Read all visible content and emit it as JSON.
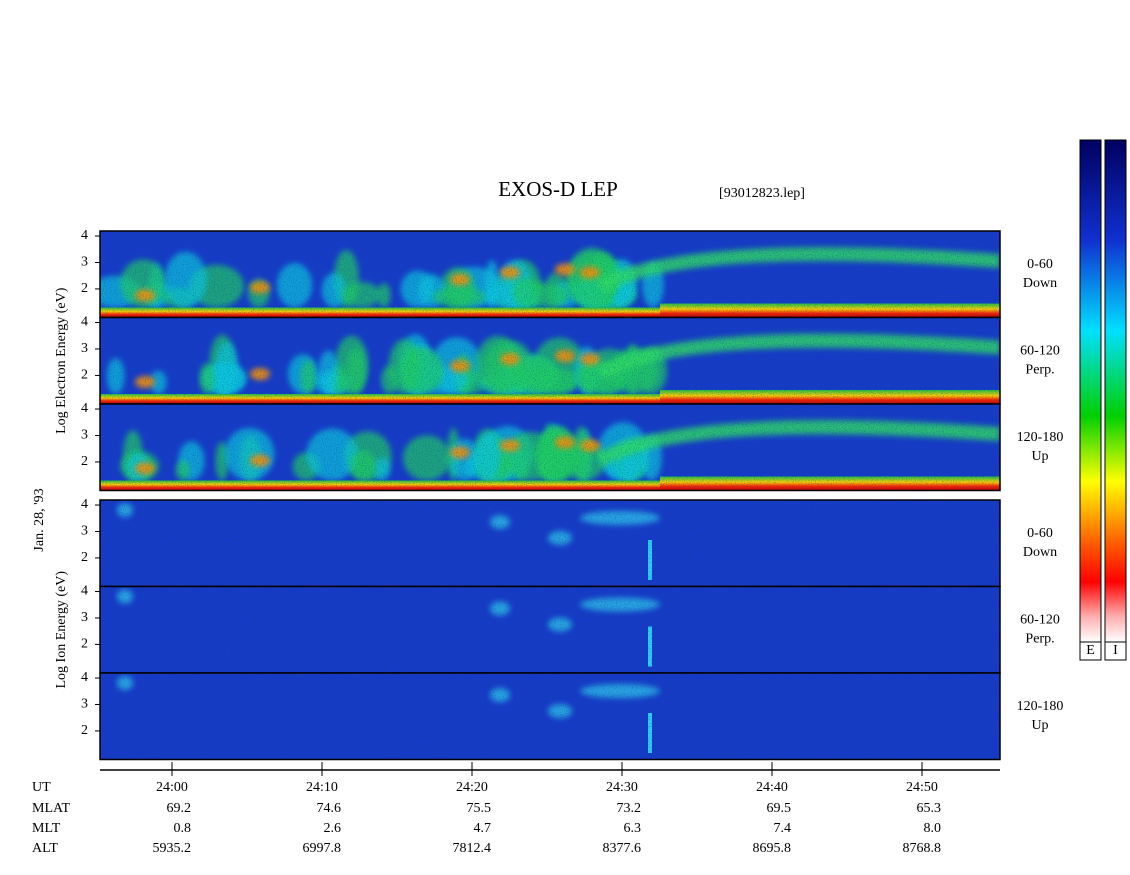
{
  "chart_data": {
    "type": "spectrogram",
    "title": "EXOS-D LEP",
    "subtitle": "[93012823.lep]",
    "date_label": "Jan. 28, '93",
    "groups": [
      {
        "species": "electron",
        "ylabel": "Log Electron Energy (eV)",
        "panels": [
          {
            "pitch_angle": "0-60",
            "direction": "Down"
          },
          {
            "pitch_angle": "60-120",
            "direction": "Perp."
          },
          {
            "pitch_angle": "120-180",
            "direction": "Up"
          }
        ]
      },
      {
        "species": "ion",
        "ylabel": "Log Ion Energy (eV)",
        "panels": [
          {
            "pitch_angle": "0-60",
            "direction": "Down"
          },
          {
            "pitch_angle": "60-120",
            "direction": "Perp."
          },
          {
            "pitch_angle": "120-180",
            "direction": "Up"
          }
        ]
      }
    ],
    "ylim": [
      0.92,
      4.19
    ],
    "yticks": [
      2,
      3,
      4
    ],
    "xlim": [
      -4.8,
      55.2
    ],
    "x_label": "UT",
    "xticks": [
      {
        "value": 0,
        "label": "24:00"
      },
      {
        "value": 10,
        "label": "24:10"
      },
      {
        "value": 20,
        "label": "24:20"
      },
      {
        "value": 30,
        "label": "24:30"
      },
      {
        "value": 40,
        "label": "24:40"
      },
      {
        "value": 50,
        "label": "24:50"
      }
    ],
    "orbit_rows": [
      {
        "name": "MLAT",
        "values": [
          "69.2",
          "74.6",
          "75.5",
          "73.2",
          "69.5",
          "65.3"
        ]
      },
      {
        "name": "MLT",
        "values": [
          "0.8",
          "2.6",
          "4.7",
          "6.3",
          "7.4",
          "8.0"
        ]
      },
      {
        "name": "ALT",
        "values": [
          "5935.2",
          "6997.8",
          "7812.4",
          "8377.6",
          "8695.8",
          "8768.8"
        ]
      }
    ],
    "colorbar_labels": [
      "E",
      "I"
    ]
  }
}
